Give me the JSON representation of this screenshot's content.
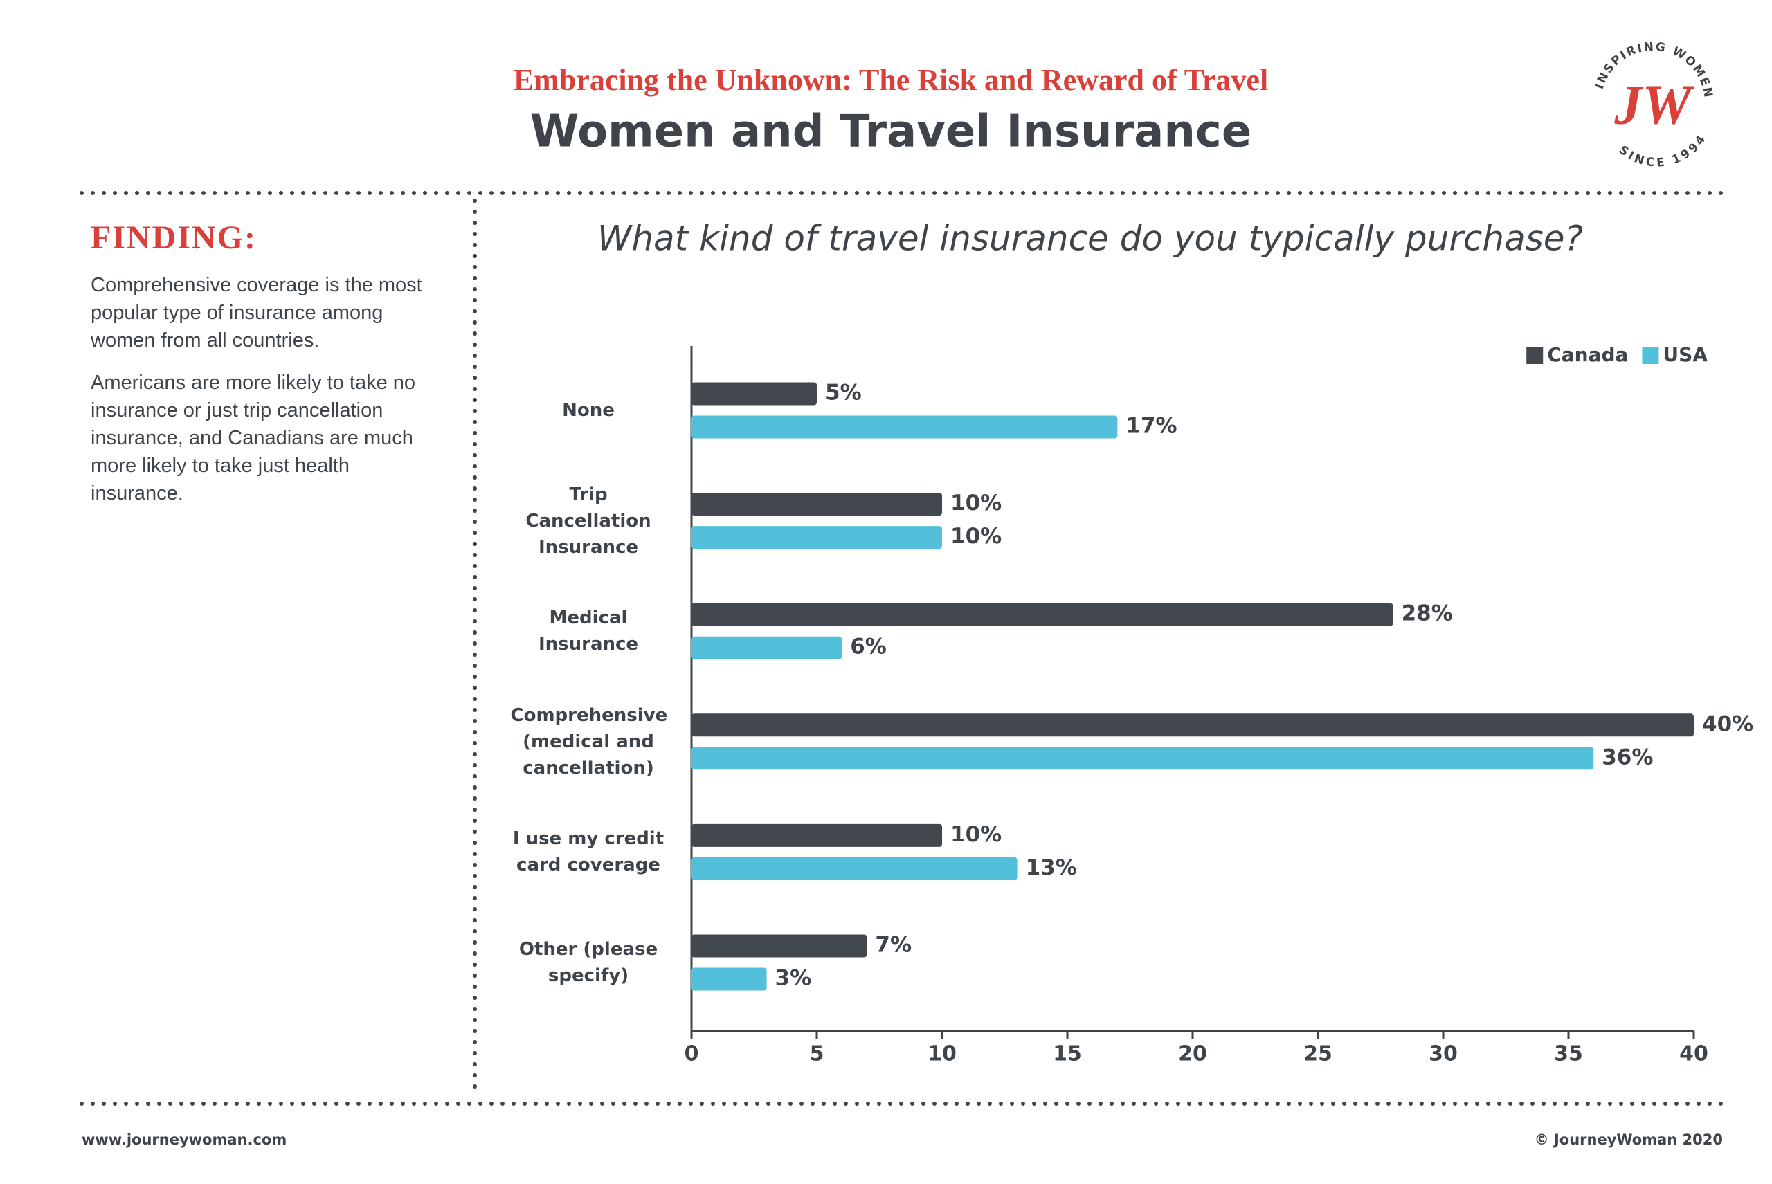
{
  "header": {
    "subtitle": "Embracing the Unknown: The Risk and Reward of Travel",
    "title": "Women and Travel Insurance"
  },
  "logo": {
    "top": "INSPIRING WOMEN",
    "mark": "JW",
    "bottom": "SINCE 1994"
  },
  "finding": {
    "heading": "FINDING:",
    "paragraphs": [
      "Comprehensive coverage is the most popular type of insurance among women from all countries.",
      "Americans are more likely to take no insurance or just trip cancellation insurance, and Canadians are much more likely to take just health insurance."
    ]
  },
  "chart_data": {
    "type": "hbar",
    "title": "What kind of travel insurance do you typically purchase?",
    "categories": [
      "None",
      "Trip Cancellation Insurance",
      "Medical Insurance",
      "Comprehensive (medical and cancellation)",
      "I use my credit card coverage",
      "Other (please specify)"
    ],
    "series": [
      {
        "name": "Canada",
        "color": "#43474e",
        "values": [
          5,
          10,
          28,
          40,
          10,
          7
        ],
        "value_labels": [
          "5%",
          "10%",
          "28%",
          "40%",
          "10%",
          "7%"
        ]
      },
      {
        "name": "USA",
        "color": "#52c0da",
        "values": [
          17,
          10,
          6,
          36,
          13,
          3
        ],
        "value_labels": [
          "17%",
          "10%",
          "6%",
          "36%",
          "13%",
          "3%"
        ]
      }
    ],
    "xlim": [
      0,
      40
    ],
    "xticks": [
      0,
      5,
      10,
      15,
      20,
      25,
      30,
      35,
      40
    ],
    "grid": false,
    "legend": "upper right"
  },
  "footer": {
    "left": "www.journeywoman.com",
    "right": "© JourneyWoman 2020"
  }
}
